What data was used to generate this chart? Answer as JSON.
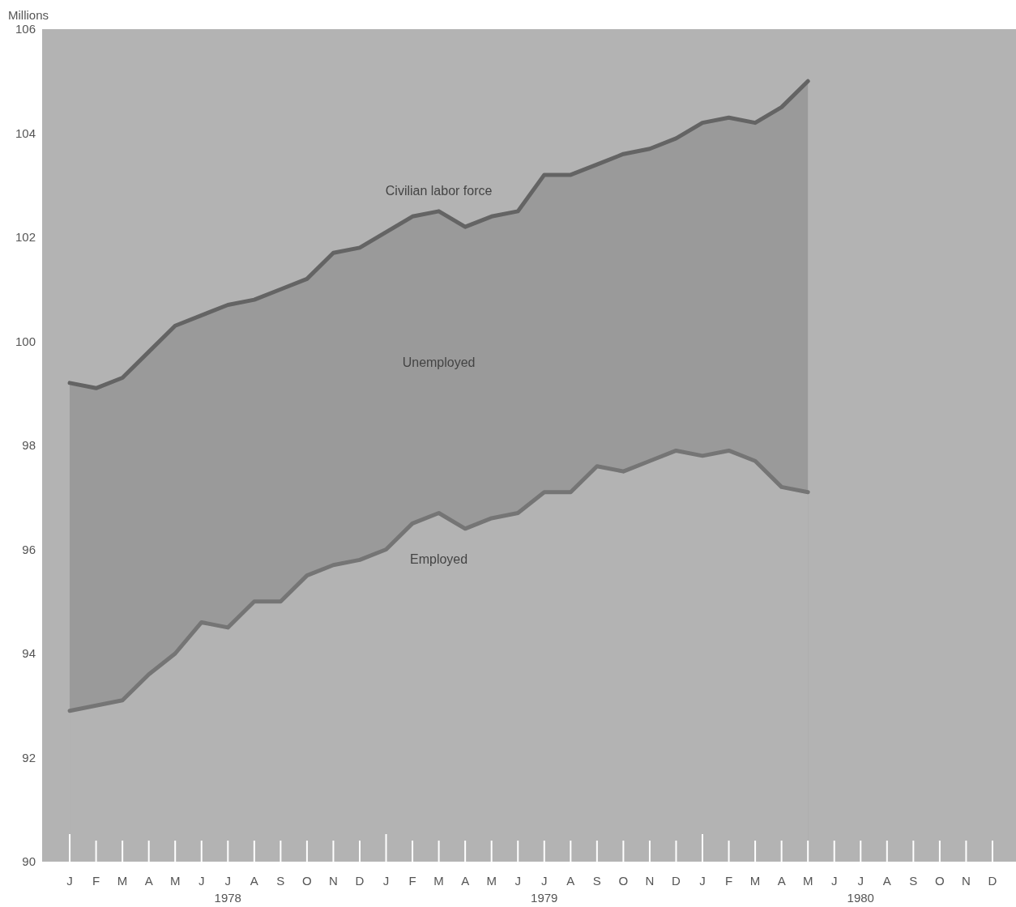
{
  "chart_data": {
    "type": "area",
    "ylabel": "Millions",
    "x": [
      "1978-01",
      "1978-02",
      "1978-03",
      "1978-04",
      "1978-05",
      "1978-06",
      "1978-07",
      "1978-08",
      "1978-09",
      "1978-10",
      "1978-11",
      "1978-12",
      "1979-01",
      "1979-02",
      "1979-03",
      "1979-04",
      "1979-05",
      "1979-06",
      "1979-07",
      "1979-08",
      "1979-09",
      "1979-10",
      "1979-11",
      "1979-12",
      "1980-01",
      "1980-02",
      "1980-03",
      "1980-04",
      "1980-05"
    ],
    "series": [
      {
        "name": "Civilian labor force",
        "color": "#9a9a9a",
        "values": [
          99.2,
          99.1,
          99.3,
          99.8,
          100.3,
          100.5,
          100.7,
          100.8,
          101.0,
          101.2,
          101.7,
          101.8,
          102.1,
          102.4,
          102.5,
          102.2,
          102.4,
          102.5,
          103.2,
          103.2,
          103.4,
          103.6,
          103.7,
          103.9,
          104.2,
          104.3,
          104.2,
          104.5,
          105.0
        ]
      },
      {
        "name": "Employed",
        "color": "#b3b3b3",
        "values": [
          92.9,
          93.0,
          93.1,
          93.6,
          94.0,
          94.6,
          94.5,
          95.0,
          95.0,
          95.5,
          95.7,
          95.8,
          96.0,
          96.5,
          96.7,
          96.4,
          96.6,
          96.7,
          97.1,
          97.1,
          97.6,
          97.5,
          97.7,
          97.9,
          97.8,
          97.9,
          97.7,
          97.2,
          97.1
        ]
      }
    ],
    "annotations": [
      "Unemployed"
    ],
    "xlim": [
      "1977-12",
      "1981-01"
    ],
    "xticks": [
      {
        "value": "1978-01",
        "label": "J"
      },
      {
        "value": "1978-02",
        "label": "F"
      },
      {
        "value": "1978-03",
        "label": "M"
      },
      {
        "value": "1978-04",
        "label": "A"
      },
      {
        "value": "1978-05",
        "label": "M"
      },
      {
        "value": "1978-06",
        "label": "J"
      },
      {
        "value": "1978-07",
        "label": "J\n1978"
      },
      {
        "value": "1978-08",
        "label": "A"
      },
      {
        "value": "1978-09",
        "label": "S"
      },
      {
        "value": "1978-10",
        "label": "O"
      },
      {
        "value": "1978-11",
        "label": "N"
      },
      {
        "value": "1978-12",
        "label": "D"
      },
      {
        "value": "1979-01",
        "label": "J"
      },
      {
        "value": "1979-02",
        "label": "F"
      },
      {
        "value": "1979-03",
        "label": "M"
      },
      {
        "value": "1979-04",
        "label": "A"
      },
      {
        "value": "1979-05",
        "label": "M"
      },
      {
        "value": "1979-06",
        "label": "J"
      },
      {
        "value": "1979-07",
        "label": "J\n1979"
      },
      {
        "value": "1979-08",
        "label": "A"
      },
      {
        "value": "1979-09",
        "label": "S"
      },
      {
        "value": "1979-10",
        "label": "O"
      },
      {
        "value": "1979-11",
        "label": "N"
      },
      {
        "value": "1979-12",
        "label": "D"
      },
      {
        "value": "1980-01",
        "label": "J"
      },
      {
        "value": "1980-02",
        "label": "F"
      },
      {
        "value": "1980-03",
        "label": "M"
      },
      {
        "value": "1980-04",
        "label": "A"
      },
      {
        "value": "1980-05",
        "label": "M"
      },
      {
        "value": "1980-06",
        "label": "J"
      },
      {
        "value": "1980-07",
        "label": "J\n1980"
      },
      {
        "value": "1980-08",
        "label": "A"
      },
      {
        "value": "1980-09",
        "label": "S"
      },
      {
        "value": "1980-10",
        "label": "O"
      },
      {
        "value": "1980-11",
        "label": "N"
      },
      {
        "value": "1980-12",
        "label": "D"
      }
    ],
    "ylim": [
      90,
      106
    ],
    "yticks": [
      90,
      92,
      94,
      96,
      98,
      100,
      102,
      104,
      106
    ],
    "grid": false,
    "legend": false,
    "marker": "none",
    "line_style": "solid"
  }
}
